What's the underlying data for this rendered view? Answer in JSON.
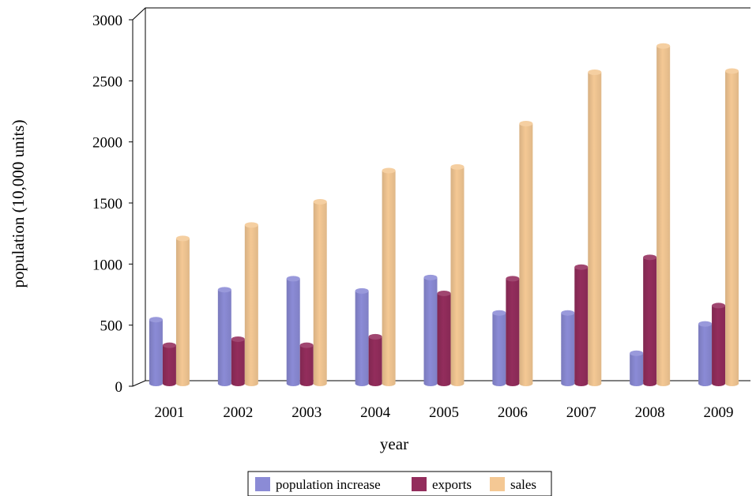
{
  "chart_data": {
    "type": "bar",
    "title": "",
    "xlabel": "year",
    "ylabel": "population (10,000 units)",
    "ylim": [
      0,
      3000
    ],
    "yticks": [
      0,
      500,
      1000,
      1500,
      2000,
      2500,
      3000
    ],
    "categories": [
      "2001",
      "2002",
      "2003",
      "2004",
      "2005",
      "2006",
      "2007",
      "2008",
      "2009"
    ],
    "series": [
      {
        "name": "population increase",
        "color": "#8b8bd6",
        "values": [
          545,
          790,
          880,
          780,
          890,
          600,
          600,
          270,
          510
        ]
      },
      {
        "name": "exports",
        "color": "#932d5c",
        "values": [
          335,
          385,
          335,
          405,
          760,
          880,
          975,
          1055,
          660
        ]
      },
      {
        "name": "sales",
        "color": "#f4c894",
        "values": [
          1210,
          1320,
          1510,
          1765,
          1795,
          2150,
          2570,
          2785,
          2580
        ]
      }
    ],
    "legend_position": "bottom-center",
    "grid": false
  }
}
